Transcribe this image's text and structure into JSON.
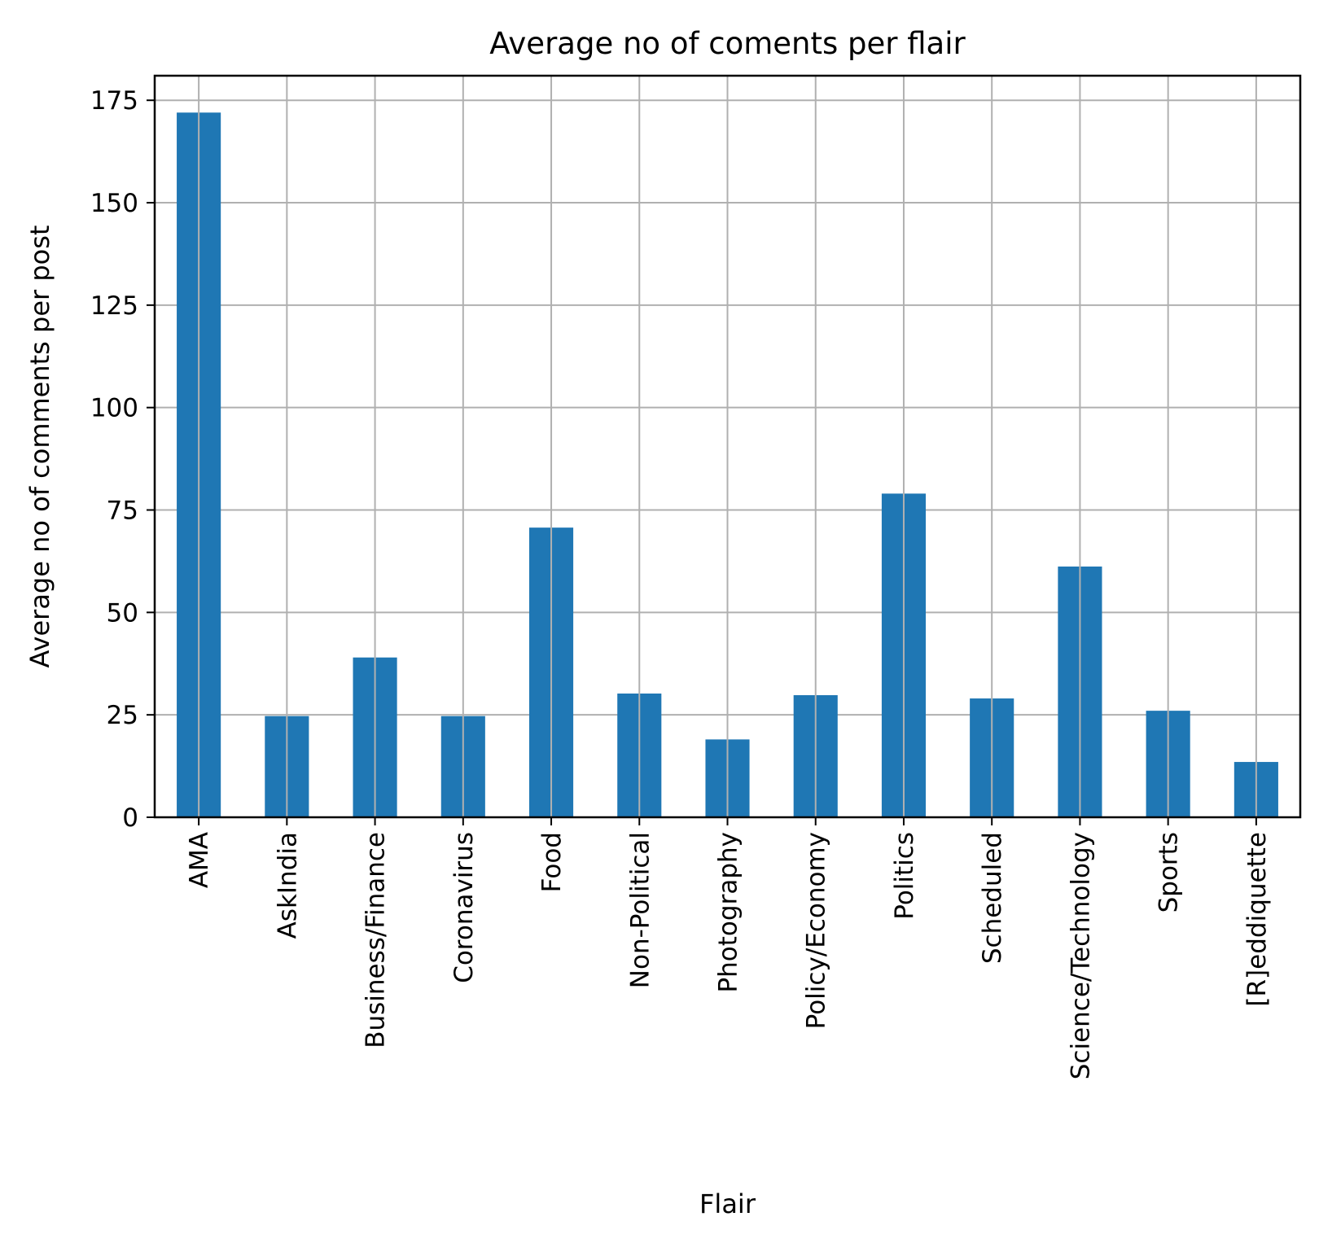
{
  "chart_data": {
    "type": "bar",
    "title": "Average no of coments per flair",
    "xlabel": "Flair",
    "ylabel": "Average no of comments per post",
    "categories": [
      "AMA",
      "AskIndia",
      "Business/Finance",
      "Coronavirus",
      "Food",
      "Non-Political",
      "Photography",
      "Policy/Economy",
      "Politics",
      "Scheduled",
      "Science/Technology",
      "Sports",
      "[R]eddiquette"
    ],
    "values": [
      172,
      24.7,
      39,
      24.7,
      70.7,
      30.2,
      19,
      29.8,
      79,
      29,
      61.2,
      26,
      13.5
    ],
    "ylim": [
      0,
      181
    ],
    "yticks": [
      0,
      25,
      50,
      75,
      100,
      125,
      150,
      175
    ],
    "grid": true,
    "legend": "none",
    "colors": {
      "bar": "#1f77b4",
      "grid": "#b0b0b0",
      "axis": "#000000"
    }
  }
}
